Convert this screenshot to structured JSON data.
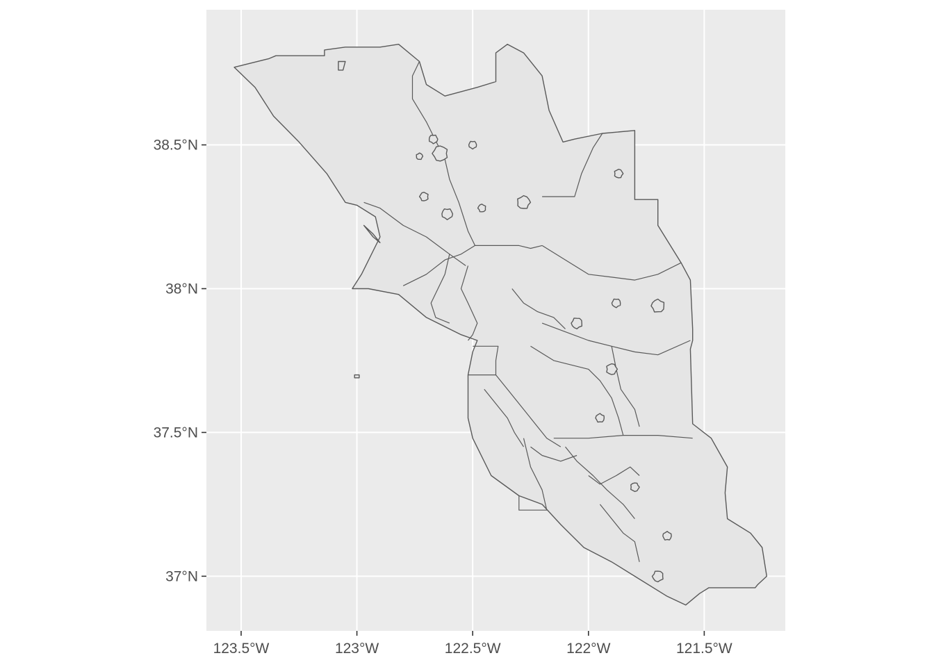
{
  "map": {
    "x_axis": {
      "range": [
        -123.65,
        -121.15
      ],
      "ticks": [
        {
          "value": -123.5,
          "label": "123.5°W"
        },
        {
          "value": -123.0,
          "label": "123°W"
        },
        {
          "value": -122.5,
          "label": "122.5°W"
        },
        {
          "value": -122.0,
          "label": "122°W"
        },
        {
          "value": -121.5,
          "label": "121.5°W"
        }
      ]
    },
    "y_axis": {
      "range": [
        36.81,
        38.97
      ],
      "ticks": [
        {
          "value": 38.5,
          "label": "38.5°N"
        },
        {
          "value": 38.0,
          "label": "38°N"
        },
        {
          "value": 37.5,
          "label": "37.5°N"
        },
        {
          "value": 37.0,
          "label": "37°N"
        }
      ]
    },
    "grid": true,
    "panel_color": "#ebebeb",
    "fill_color": "#e5e5e5",
    "border_color": "#595959",
    "regions": [
      {
        "name": "outer-bay-area",
        "coords": [
          [
            -123.53,
            38.77
          ],
          [
            -123.38,
            38.8
          ],
          [
            -123.35,
            38.81
          ],
          [
            -123.14,
            38.81
          ],
          [
            -123.14,
            38.83
          ],
          [
            -123.05,
            38.84
          ],
          [
            -122.9,
            38.84
          ],
          [
            -122.82,
            38.85
          ],
          [
            -122.73,
            38.79
          ],
          [
            -122.7,
            38.71
          ],
          [
            -122.62,
            38.67
          ],
          [
            -122.48,
            38.7
          ],
          [
            -122.4,
            38.72
          ],
          [
            -122.4,
            38.82
          ],
          [
            -122.35,
            38.85
          ],
          [
            -122.28,
            38.82
          ],
          [
            -122.2,
            38.74
          ],
          [
            -122.17,
            38.62
          ],
          [
            -122.11,
            38.51
          ],
          [
            -122.06,
            38.52
          ],
          [
            -121.94,
            38.54
          ],
          [
            -121.8,
            38.55
          ],
          [
            -121.8,
            38.31
          ],
          [
            -121.7,
            38.31
          ],
          [
            -121.7,
            38.22
          ],
          [
            -121.6,
            38.09
          ],
          [
            -121.56,
            38.03
          ],
          [
            -121.55,
            37.86
          ],
          [
            -121.55,
            37.82
          ],
          [
            -121.56,
            37.79
          ],
          [
            -121.55,
            37.53
          ],
          [
            -121.47,
            37.48
          ],
          [
            -121.4,
            37.38
          ],
          [
            -121.41,
            37.29
          ],
          [
            -121.4,
            37.2
          ],
          [
            -121.3,
            37.15
          ],
          [
            -121.25,
            37.1
          ],
          [
            -121.23,
            37.0
          ],
          [
            -121.27,
            36.97
          ],
          [
            -121.28,
            36.96
          ],
          [
            -121.48,
            36.96
          ],
          [
            -121.52,
            36.94
          ],
          [
            -121.58,
            36.9
          ],
          [
            -121.66,
            36.93
          ],
          [
            -121.8,
            37.0
          ],
          [
            -121.9,
            37.05
          ],
          [
            -122.02,
            37.1
          ],
          [
            -122.12,
            37.18
          ],
          [
            -122.2,
            37.25
          ],
          [
            -122.3,
            37.28
          ],
          [
            -122.42,
            37.35
          ],
          [
            -122.5,
            37.48
          ],
          [
            -122.52,
            37.55
          ],
          [
            -122.52,
            37.7
          ],
          [
            -122.5,
            37.78
          ],
          [
            -122.48,
            37.82
          ],
          [
            -122.55,
            37.84
          ],
          [
            -122.7,
            37.9
          ],
          [
            -122.82,
            37.98
          ],
          [
            -122.95,
            38.0
          ],
          [
            -123.02,
            38.0
          ],
          [
            -122.98,
            38.05
          ],
          [
            -122.9,
            38.18
          ],
          [
            -122.92,
            38.25
          ],
          [
            -123.0,
            38.29
          ],
          [
            -123.05,
            38.3
          ],
          [
            -123.13,
            38.4
          ],
          [
            -123.25,
            38.51
          ],
          [
            -123.36,
            38.6
          ],
          [
            -123.44,
            38.7
          ],
          [
            -123.53,
            38.77
          ]
        ]
      },
      {
        "name": "island-1",
        "coords": [
          [
            -123.08,
            38.79
          ],
          [
            -123.05,
            38.79
          ],
          [
            -123.06,
            38.76
          ],
          [
            -123.08,
            38.76
          ],
          [
            -123.08,
            38.79
          ]
        ]
      },
      {
        "name": "island-2",
        "coords": [
          [
            -123.01,
            37.7
          ],
          [
            -122.99,
            37.7
          ],
          [
            -122.99,
            37.69
          ],
          [
            -123.01,
            37.69
          ],
          [
            -123.01,
            37.7
          ]
        ]
      },
      {
        "name": "point-reyes-spit",
        "coords": [
          [
            -122.97,
            38.22
          ],
          [
            -122.93,
            38.19
          ],
          [
            -122.9,
            38.16
          ],
          [
            -122.93,
            38.18
          ],
          [
            -122.97,
            38.22
          ]
        ]
      }
    ],
    "boundaries": [
      [
        [
          -122.73,
          38.79
        ],
        [
          -122.76,
          38.74
        ],
        [
          -122.76,
          38.66
        ],
        [
          -122.7,
          38.58
        ],
        [
          -122.62,
          38.45
        ],
        [
          -122.6,
          38.38
        ],
        [
          -122.56,
          38.3
        ],
        [
          -122.52,
          38.2
        ],
        [
          -122.49,
          38.15
        ]
      ],
      [
        [
          -122.49,
          38.15
        ],
        [
          -122.4,
          38.15
        ],
        [
          -122.3,
          38.15
        ],
        [
          -122.25,
          38.14
        ],
        [
          -122.2,
          38.15
        ]
      ],
      [
        [
          -121.94,
          38.54
        ],
        [
          -121.98,
          38.49
        ],
        [
          -122.03,
          38.4
        ],
        [
          -122.06,
          38.32
        ],
        [
          -122.2,
          38.32
        ]
      ],
      [
        [
          -122.49,
          38.15
        ],
        [
          -122.55,
          38.12
        ],
        [
          -122.62,
          38.1
        ],
        [
          -122.7,
          38.05
        ],
        [
          -122.8,
          38.01
        ]
      ],
      [
        [
          -122.97,
          38.3
        ],
        [
          -122.9,
          38.28
        ],
        [
          -122.8,
          38.22
        ],
        [
          -122.7,
          38.18
        ],
        [
          -122.6,
          38.12
        ],
        [
          -122.53,
          38.08
        ]
      ],
      [
        [
          -122.52,
          37.82
        ],
        [
          -122.5,
          37.84
        ],
        [
          -122.48,
          37.88
        ],
        [
          -122.52,
          37.95
        ],
        [
          -122.55,
          38.0
        ],
        [
          -122.52,
          38.08
        ]
      ],
      [
        [
          -122.5,
          37.8
        ],
        [
          -122.39,
          37.8
        ],
        [
          -122.4,
          37.75
        ],
        [
          -122.4,
          37.7
        ],
        [
          -122.52,
          37.7
        ]
      ],
      [
        [
          -122.4,
          37.7
        ],
        [
          -122.35,
          37.65
        ],
        [
          -122.25,
          37.55
        ],
        [
          -122.18,
          37.48
        ],
        [
          -122.12,
          37.45
        ]
      ],
      [
        [
          -122.28,
          37.48
        ],
        [
          -122.25,
          37.38
        ],
        [
          -122.2,
          37.3
        ],
        [
          -122.18,
          37.23
        ],
        [
          -122.3,
          37.23
        ],
        [
          -122.3,
          37.28
        ]
      ],
      [
        [
          -122.2,
          37.88
        ],
        [
          -122.1,
          37.85
        ],
        [
          -122.0,
          37.82
        ],
        [
          -121.9,
          37.8
        ],
        [
          -121.8,
          37.78
        ],
        [
          -121.7,
          37.77
        ],
        [
          -121.56,
          37.82
        ]
      ],
      [
        [
          -122.15,
          37.48
        ],
        [
          -122.0,
          37.48
        ],
        [
          -121.85,
          37.49
        ],
        [
          -121.7,
          37.49
        ],
        [
          -121.55,
          37.48
        ]
      ],
      [
        [
          -121.85,
          37.49
        ],
        [
          -121.87,
          37.55
        ],
        [
          -121.9,
          37.62
        ],
        [
          -121.95,
          37.68
        ],
        [
          -122.0,
          37.72
        ],
        [
          -122.15,
          37.75
        ],
        [
          -122.25,
          37.8
        ]
      ],
      [
        [
          -122.2,
          38.15
        ],
        [
          -122.1,
          38.1
        ],
        [
          -122.0,
          38.05
        ],
        [
          -121.9,
          38.04
        ],
        [
          -121.8,
          38.03
        ],
        [
          -121.7,
          38.05
        ],
        [
          -121.6,
          38.09
        ]
      ],
      [
        [
          -122.6,
          38.12
        ],
        [
          -122.62,
          38.05
        ],
        [
          -122.65,
          38.0
        ],
        [
          -122.68,
          37.95
        ],
        [
          -122.66,
          37.9
        ],
        [
          -122.6,
          37.88
        ]
      ],
      [
        [
          -122.33,
          38.0
        ],
        [
          -122.28,
          37.95
        ],
        [
          -122.22,
          37.92
        ],
        [
          -122.15,
          37.9
        ],
        [
          -122.1,
          37.86
        ]
      ],
      [
        [
          -121.9,
          37.8
        ],
        [
          -121.88,
          37.72
        ],
        [
          -121.86,
          37.65
        ],
        [
          -121.8,
          37.58
        ],
        [
          -121.78,
          37.52
        ]
      ],
      [
        [
          -122.1,
          37.45
        ],
        [
          -122.05,
          37.4
        ],
        [
          -121.98,
          37.35
        ],
        [
          -121.92,
          37.3
        ],
        [
          -121.85,
          37.25
        ],
        [
          -121.8,
          37.2
        ]
      ],
      [
        [
          -121.95,
          37.25
        ],
        [
          -121.9,
          37.2
        ],
        [
          -121.85,
          37.15
        ],
        [
          -121.8,
          37.12
        ],
        [
          -121.78,
          37.05
        ]
      ],
      [
        [
          -122.0,
          37.35
        ],
        [
          -121.95,
          37.32
        ],
        [
          -121.88,
          37.35
        ],
        [
          -121.82,
          37.38
        ],
        [
          -121.78,
          37.35
        ]
      ],
      [
        [
          -122.45,
          37.65
        ],
        [
          -122.4,
          37.6
        ],
        [
          -122.35,
          37.55
        ],
        [
          -122.32,
          37.5
        ],
        [
          -122.28,
          37.45
        ]
      ],
      [
        [
          -122.25,
          37.45
        ],
        [
          -122.2,
          37.42
        ],
        [
          -122.12,
          37.4
        ],
        [
          -122.05,
          37.42
        ]
      ]
    ],
    "islands": [
      {
        "center": [
          -122.64,
          38.47
        ],
        "r": 0.035
      },
      {
        "center": [
          -122.67,
          38.52
        ],
        "r": 0.02
      },
      {
        "center": [
          -122.73,
          38.46
        ],
        "r": 0.015
      },
      {
        "center": [
          -122.71,
          38.32
        ],
        "r": 0.02
      },
      {
        "center": [
          -122.61,
          38.26
        ],
        "r": 0.025
      },
      {
        "center": [
          -122.28,
          38.3
        ],
        "r": 0.03
      },
      {
        "center": [
          -122.46,
          38.28
        ],
        "r": 0.018
      },
      {
        "center": [
          -122.5,
          38.5
        ],
        "r": 0.018
      },
      {
        "center": [
          -121.87,
          38.4
        ],
        "r": 0.02
      },
      {
        "center": [
          -121.7,
          37.94
        ],
        "r": 0.03
      },
      {
        "center": [
          -121.88,
          37.95
        ],
        "r": 0.02
      },
      {
        "center": [
          -121.9,
          37.72
        ],
        "r": 0.025
      },
      {
        "center": [
          -121.95,
          37.55
        ],
        "r": 0.02
      },
      {
        "center": [
          -122.05,
          37.88
        ],
        "r": 0.025
      },
      {
        "center": [
          -121.8,
          37.31
        ],
        "r": 0.02
      },
      {
        "center": [
          -121.66,
          37.14
        ],
        "r": 0.02
      },
      {
        "center": [
          -121.7,
          37.0
        ],
        "r": 0.025
      }
    ]
  }
}
